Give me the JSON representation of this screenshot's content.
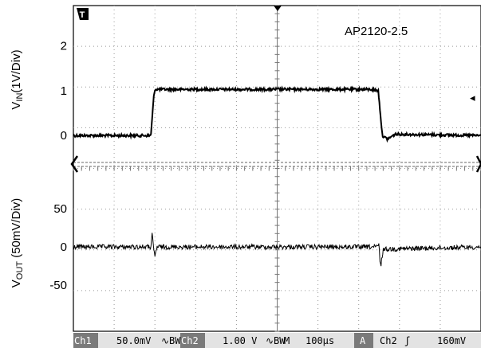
{
  "chart_data": [
    {
      "type": "line",
      "panel": "top",
      "annotation": "AP2120-2.5",
      "ylabel_main": "V",
      "ylabel_sub": "IN",
      "ylabel_rest": "(1V/Div)",
      "yticks": [
        0,
        1,
        2
      ],
      "ylim": [
        -0.6,
        2.9
      ],
      "x_unit": "µs",
      "xlim": [
        0,
        1000
      ],
      "series": [
        {
          "x": [
            0,
            190,
            193,
            197,
            200,
            260,
            400,
            550,
            730,
            748,
            752,
            758,
            770,
            790,
            1000
          ],
          "y": [
            0.0,
            0.0,
            0.35,
            0.85,
            1.03,
            1.03,
            1.03,
            1.03,
            1.03,
            1.0,
            0.6,
            0.0,
            -0.08,
            0.03,
            0.0
          ]
        }
      ]
    },
    {
      "type": "line",
      "panel": "bottom",
      "ylabel_main": "V",
      "ylabel_sub": "OUT",
      "ylabel_rest": " (50mV/Div)",
      "yticks": [
        -50,
        0,
        50
      ],
      "ylim": [
        -110,
        105
      ],
      "x_unit": "µs",
      "xlim": [
        0,
        1000
      ],
      "series": [
        {
          "x": [
            0,
            190,
            192,
            193,
            195,
            197,
            200,
            205,
            745,
            750,
            752,
            754,
            757,
            760,
            1000
          ],
          "y": [
            0,
            0,
            10,
            16,
            8,
            -5,
            -12,
            0,
            0,
            3,
            -18,
            -26,
            -14,
            -3,
            0
          ]
        }
      ]
    }
  ],
  "status_bar": {
    "ch1_label": "Ch1",
    "ch1_scale": "50.0mV",
    "ch1_coupling": "∿BW",
    "ch2_label": "Ch2",
    "ch2_scale": "1.00 V",
    "ch2_coupling": "∿BW",
    "timebase_label": "M",
    "timebase_value": "100µs",
    "trigger_mode": "A",
    "trigger_source": "Ch2",
    "trigger_slope": "ʃ",
    "trigger_level": "160mV"
  },
  "markers": {
    "trigger_marker": "T",
    "trigger_level_arrow": "◂"
  },
  "colors": {
    "trace": "#000000",
    "grid": "#888888",
    "status_bg_dark": "#7a7a7a",
    "status_bg": "#e3e3e3"
  }
}
